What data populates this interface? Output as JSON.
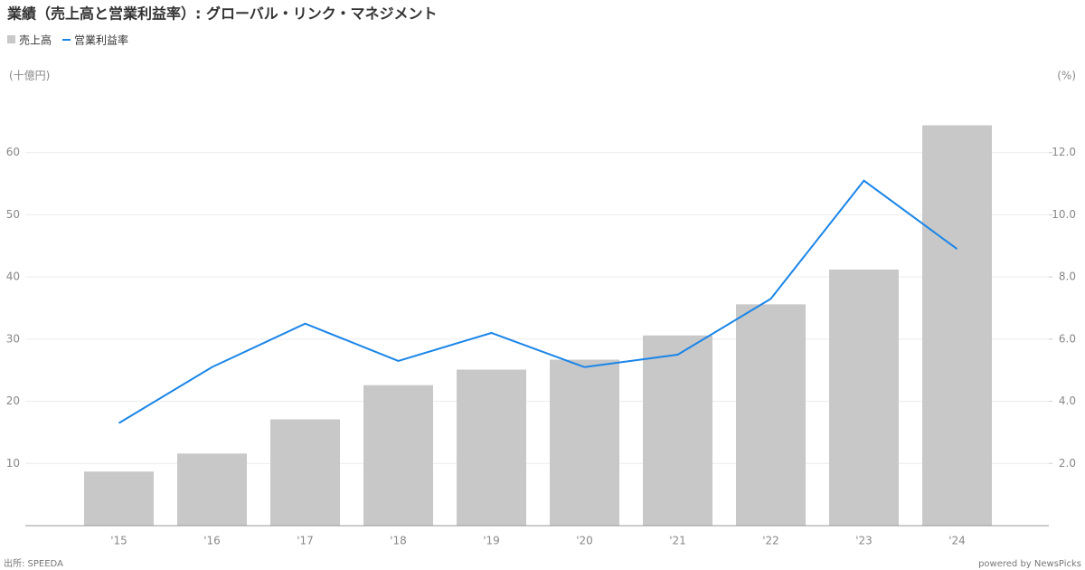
{
  "chart_data": {
    "type": "bar-line",
    "title": "業績（売上高と営業利益率）: グローバル・リンク・マネジメント",
    "y_label": "(十億円)",
    "y2_label": "(%)",
    "source": "出所: SPEEDA",
    "credit": "powered by NewsPicks",
    "categories": [
      "'15",
      "'16",
      "'17",
      "'18",
      "'19",
      "'20",
      "'21",
      "'22",
      "'23",
      "'24"
    ],
    "series": [
      {
        "name": "売上高",
        "type": "bar",
        "color": "#c8c8c8",
        "values": [
          8.7,
          11.6,
          17.1,
          22.6,
          25.1,
          26.7,
          30.6,
          35.6,
          41.2,
          64.4
        ]
      },
      {
        "name": "営業利益率",
        "type": "line",
        "axis": "y2",
        "color": "#1a85e8",
        "values": [
          3.3,
          5.1,
          6.5,
          5.3,
          6.2,
          5.1,
          5.5,
          7.3,
          11.1,
          8.9
        ]
      }
    ],
    "ylim": [
      0,
      70
    ],
    "yticks": [
      10,
      20,
      30,
      40,
      50,
      60
    ],
    "y2lim": [
      0,
      14
    ],
    "y2ticks": [
      {
        "value": 2,
        "label": "2.0"
      },
      {
        "value": 4,
        "label": "4.0"
      },
      {
        "value": 6,
        "label": "6.0"
      },
      {
        "value": 8,
        "label": "8.0"
      },
      {
        "value": 10,
        "label": "10.0"
      },
      {
        "value": 12,
        "label": "12.0"
      }
    ],
    "grid": true
  }
}
